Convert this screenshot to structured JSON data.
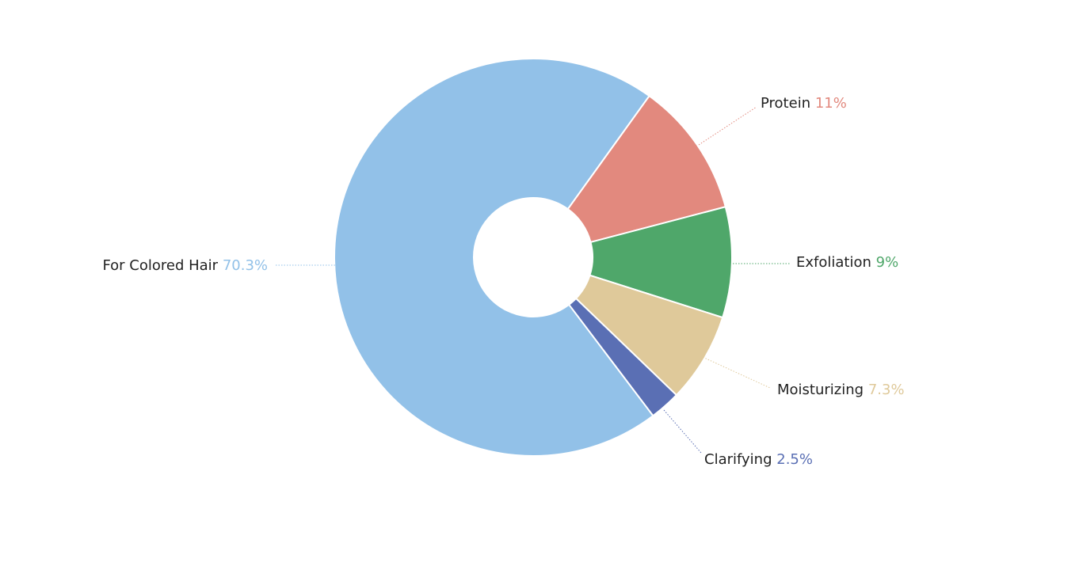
{
  "chart_data": {
    "type": "pie",
    "categories": [
      "For Colored Hair",
      "Protein",
      "Exfoliation",
      "Moisturizing",
      "Clarifying"
    ],
    "values": [
      70.3,
      11,
      9,
      7.3,
      2.5
    ],
    "value_labels": [
      "70.3%",
      "11%",
      "9%",
      "7.3%",
      "2.5%"
    ],
    "colors": [
      "#92c1e8",
      "#e2897e",
      "#4fa76a",
      "#dfc99a",
      "#5a6fb4"
    ]
  }
}
